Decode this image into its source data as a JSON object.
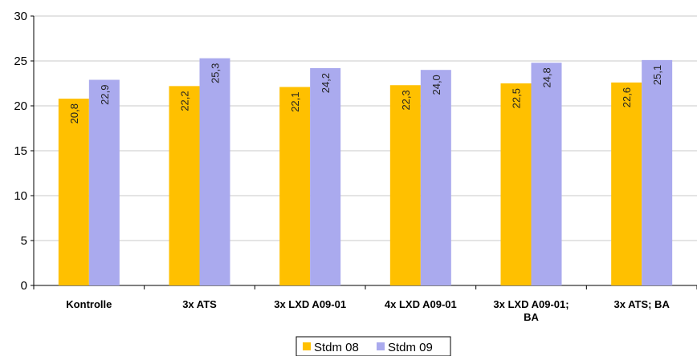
{
  "chart_data": {
    "type": "bar",
    "categories": [
      "Kontrolle",
      "3x ATS",
      "3x LXD A09-01",
      "4x LXD A09-01",
      "3x LXD A09-01; BA",
      "3x ATS; BA"
    ],
    "series": [
      {
        "name": "Stdm 08",
        "color": "#ffc000",
        "values": [
          20.8,
          22.2,
          22.1,
          22.3,
          22.5,
          22.6
        ],
        "value_labels": [
          "20,8",
          "22,2",
          "22,1",
          "22,3",
          "22,5",
          "22,6"
        ]
      },
      {
        "name": "Stdm 09",
        "color": "#aaaaee",
        "values": [
          22.9,
          25.3,
          24.2,
          24.0,
          24.8,
          25.1
        ],
        "value_labels": [
          "22,9",
          "25,3",
          "24,2",
          "24,0",
          "24,8",
          "25,1"
        ]
      }
    ],
    "ylim": [
      0,
      30
    ],
    "yticks": [
      0,
      5,
      10,
      15,
      20,
      25,
      30
    ],
    "grid": true,
    "legend": "bottom"
  }
}
